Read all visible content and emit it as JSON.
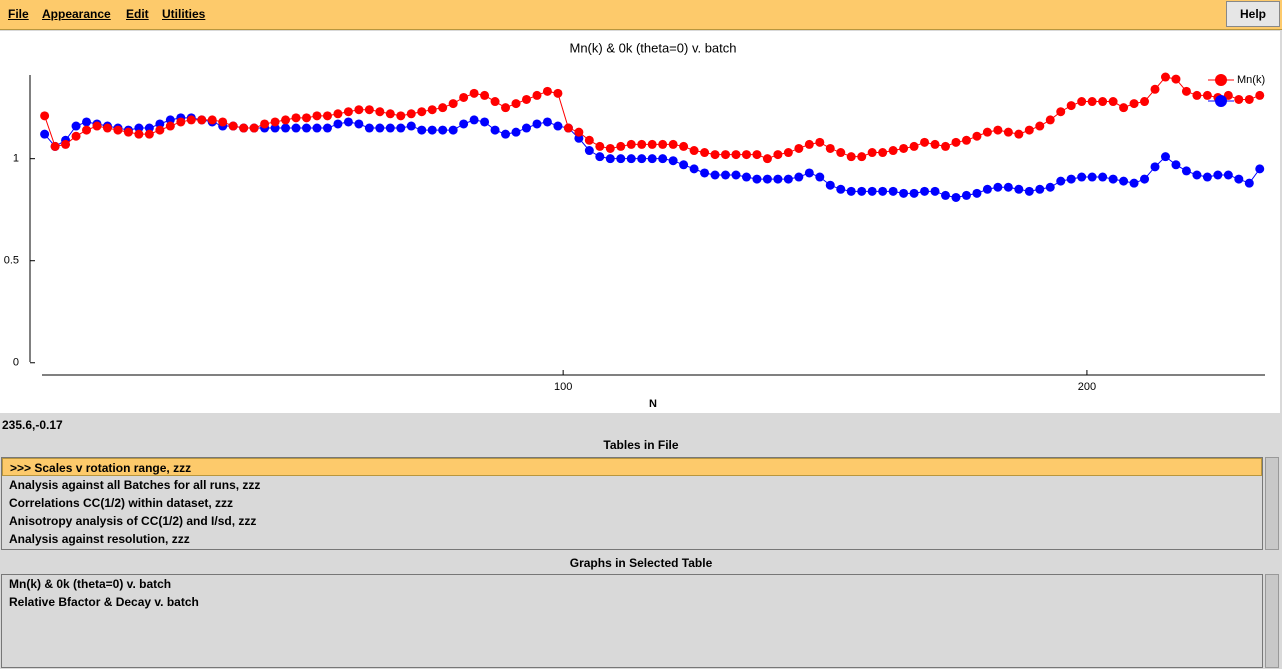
{
  "menu": [
    "File",
    "Appearance",
    "Edit",
    "Utilities"
  ],
  "help": "Help",
  "chart_data": {
    "type": "scatter",
    "title": "Mn(k) & 0k (theta=0) v. batch",
    "x_label": "N",
    "xlim": [
      0.5,
      234
    ],
    "xticks": [
      100,
      200
    ],
    "ylim": [
      -0.06,
      1.41
    ],
    "yticks": [
      0,
      0.5,
      1
    ],
    "connect": true,
    "legend": "top-right",
    "x": [
      1,
      3,
      5,
      7,
      9,
      11,
      13,
      15,
      17,
      19,
      21,
      23,
      25,
      27,
      29,
      31,
      33,
      35,
      37,
      39,
      41,
      43,
      45,
      47,
      49,
      51,
      53,
      55,
      57,
      59,
      61,
      63,
      65,
      67,
      69,
      71,
      73,
      75,
      77,
      79,
      81,
      83,
      85,
      87,
      89,
      91,
      93,
      95,
      97,
      99,
      101,
      103,
      105,
      107,
      109,
      111,
      113,
      115,
      117,
      119,
      121,
      123,
      125,
      127,
      129,
      131,
      133,
      135,
      137,
      139,
      141,
      143,
      145,
      147,
      149,
      151,
      153,
      155,
      157,
      159,
      161,
      163,
      165,
      167,
      169,
      171,
      173,
      175,
      177,
      179,
      181,
      183,
      185,
      187,
      189,
      191,
      193,
      195,
      197,
      199,
      201,
      203,
      205,
      207,
      209,
      211,
      213,
      215,
      217,
      219,
      221,
      223,
      225,
      227,
      229,
      231,
      233
    ],
    "series": [
      {
        "color": "#0000ff",
        "values": [
          1.12,
          1.06,
          1.09,
          1.16,
          1.18,
          1.17,
          1.16,
          1.15,
          1.14,
          1.15,
          1.15,
          1.17,
          1.19,
          1.2,
          1.2,
          1.19,
          1.18,
          1.16,
          1.16,
          1.15,
          1.15,
          1.15,
          1.15,
          1.15,
          1.15,
          1.15,
          1.15,
          1.15,
          1.17,
          1.18,
          1.17,
          1.15,
          1.15,
          1.15,
          1.15,
          1.16,
          1.14,
          1.14,
          1.14,
          1.14,
          1.17,
          1.19,
          1.18,
          1.14,
          1.12,
          1.13,
          1.15,
          1.17,
          1.18,
          1.16,
          1.15,
          1.1,
          1.04,
          1.01,
          1.0,
          1.0,
          1.0,
          1.0,
          1.0,
          1.0,
          0.99,
          0.97,
          0.95,
          0.93,
          0.92,
          0.92,
          0.92,
          0.91,
          0.9,
          0.9,
          0.9,
          0.9,
          0.91,
          0.93,
          0.91,
          0.87,
          0.85,
          0.84,
          0.84,
          0.84,
          0.84,
          0.84,
          0.83,
          0.83,
          0.84,
          0.84,
          0.82,
          0.81,
          0.82,
          0.83,
          0.85,
          0.86,
          0.86,
          0.85,
          0.84,
          0.85,
          0.86,
          0.89,
          0.9,
          0.91,
          0.91,
          0.91,
          0.9,
          0.89,
          0.88,
          0.9,
          0.96,
          1.01,
          0.97,
          0.94,
          0.92,
          0.91,
          0.92,
          0.92,
          0.9,
          0.88,
          0.95
        ]
      },
      {
        "name": "Mn(k)",
        "color": "#ff0000",
        "values": [
          1.21,
          1.06,
          1.07,
          1.11,
          1.14,
          1.16,
          1.15,
          1.14,
          1.13,
          1.12,
          1.12,
          1.14,
          1.16,
          1.18,
          1.19,
          1.19,
          1.19,
          1.18,
          1.16,
          1.15,
          1.15,
          1.17,
          1.18,
          1.19,
          1.2,
          1.2,
          1.21,
          1.21,
          1.22,
          1.23,
          1.24,
          1.24,
          1.23,
          1.22,
          1.21,
          1.22,
          1.23,
          1.24,
          1.25,
          1.27,
          1.3,
          1.32,
          1.31,
          1.28,
          1.25,
          1.27,
          1.29,
          1.31,
          1.33,
          1.32,
          1.15,
          1.13,
          1.09,
          1.06,
          1.05,
          1.06,
          1.07,
          1.07,
          1.07,
          1.07,
          1.07,
          1.06,
          1.04,
          1.03,
          1.02,
          1.02,
          1.02,
          1.02,
          1.02,
          1.0,
          1.02,
          1.03,
          1.05,
          1.07,
          1.08,
          1.05,
          1.03,
          1.01,
          1.01,
          1.03,
          1.03,
          1.04,
          1.05,
          1.06,
          1.08,
          1.07,
          1.06,
          1.08,
          1.09,
          1.11,
          1.13,
          1.14,
          1.13,
          1.12,
          1.14,
          1.16,
          1.19,
          1.23,
          1.26,
          1.28,
          1.28,
          1.28,
          1.28,
          1.25,
          1.27,
          1.28,
          1.34,
          1.4,
          1.39,
          1.33,
          1.31,
          1.31,
          1.3,
          1.31,
          1.29,
          1.29,
          1.31
        ]
      }
    ]
  },
  "status": "235.6,-0.17",
  "tables": {
    "header": "Tables in File",
    "selected": 0,
    "items": [
      ">>> Scales v rotation range, zzz",
      "Analysis against all Batches for all runs, zzz",
      "Correlations CC(1/2) within dataset, zzz",
      "Anisotropy analysis of CC(1/2) and I/sd, zzz",
      "Analysis against resolution, zzz"
    ]
  },
  "graphs": {
    "header": "Graphs in Selected Table",
    "items": [
      "Mn(k) & 0k (theta=0) v. batch",
      "Relative Bfactor & Decay v. batch"
    ]
  }
}
